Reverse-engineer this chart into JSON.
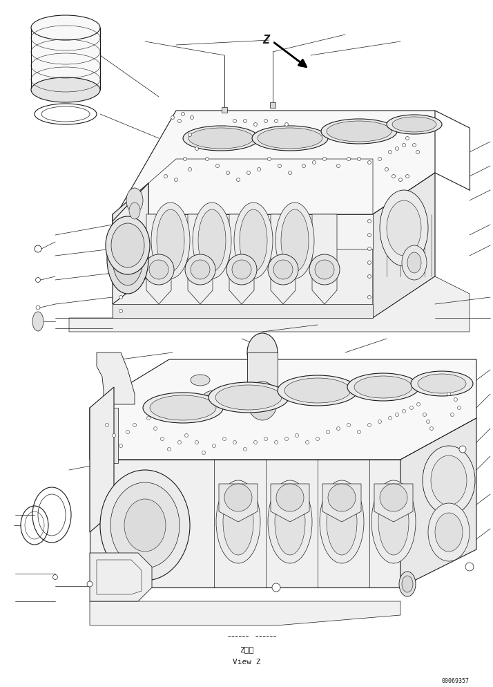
{
  "background_color": "#ffffff",
  "line_color": "#1a1a1a",
  "text_color": "#1a1a1a",
  "part_number": "00069357",
  "view_label_jp": "Z　視",
  "view_label_en": "View Z",
  "fig_width": 7.14,
  "fig_height": 9.94,
  "dpi": 100,
  "lw_main": 0.8,
  "lw_thin": 0.5,
  "lw_detail": 0.4,
  "fc_light": "#f8f8f8",
  "fc_mid": "#f0f0f0",
  "fc_dark": "#e8e8e8"
}
